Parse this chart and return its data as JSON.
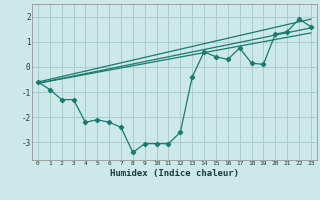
{
  "title": "",
  "xlabel": "Humidex (Indice chaleur)",
  "ylabel": "",
  "bg_color": "#cce8e8",
  "grid_color": "#aacccc",
  "line_color": "#1a7a6e",
  "xlim": [
    -0.5,
    23.5
  ],
  "ylim": [
    -3.7,
    2.5
  ],
  "yticks": [
    -3,
    -2,
    -1,
    0,
    1,
    2
  ],
  "xticks": [
    0,
    1,
    2,
    3,
    4,
    5,
    6,
    7,
    8,
    9,
    10,
    11,
    12,
    13,
    14,
    15,
    16,
    17,
    18,
    19,
    20,
    21,
    22,
    23
  ],
  "main_x": [
    0,
    1,
    2,
    3,
    4,
    5,
    6,
    7,
    8,
    9,
    10,
    11,
    12,
    13,
    14,
    15,
    16,
    17,
    18,
    19,
    20,
    21,
    22,
    23
  ],
  "main_y": [
    -0.6,
    -0.9,
    -1.3,
    -1.3,
    -2.2,
    -2.1,
    -2.2,
    -2.4,
    -3.4,
    -3.05,
    -3.05,
    -3.05,
    -2.6,
    -0.4,
    0.6,
    0.4,
    0.3,
    0.75,
    0.15,
    0.1,
    1.3,
    1.4,
    1.9,
    1.6
  ],
  "line1_x": [
    0,
    23
  ],
  "line1_y": [
    -0.6,
    1.9
  ],
  "line2_x": [
    0,
    23
  ],
  "line2_y": [
    -0.65,
    1.55
  ],
  "line3_x": [
    0,
    23
  ],
  "line3_y": [
    -0.65,
    1.35
  ]
}
